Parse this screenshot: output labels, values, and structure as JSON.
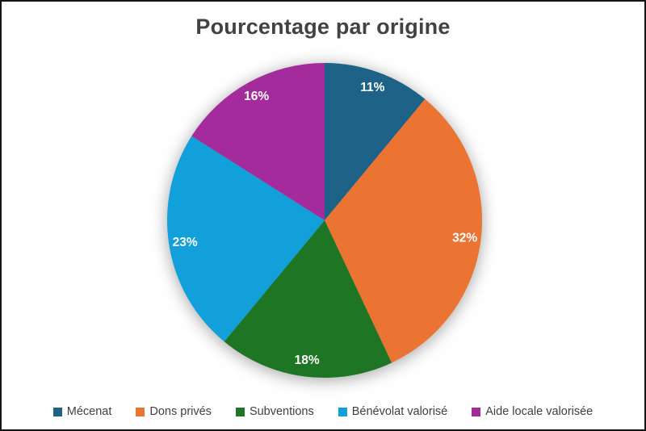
{
  "chart_data": {
    "type": "pie",
    "title": "Pourcentage par origine",
    "categories": [
      "Mécenat",
      "Dons privés",
      "Subventions",
      "Bénévolat valorisé",
      "Aide locale valorisée"
    ],
    "values": [
      11,
      32,
      18,
      23,
      16
    ],
    "slice_labels": [
      "11%",
      "32%",
      "18%",
      "23%",
      "16%"
    ],
    "colors": [
      "#1F6287",
      "#EC7433",
      "#1E7524",
      "#12A0DA",
      "#A32B9C"
    ],
    "slice_label_color": "#FFFFFF",
    "start_angle": "top",
    "direction": "clockwise",
    "legend_position": "bottom",
    "grid": "off"
  },
  "styles": {
    "title_color": "#424242",
    "legend_text_color": "#3F3F3F",
    "background": "#FFFFFF",
    "frame_border_color": "#141414"
  }
}
